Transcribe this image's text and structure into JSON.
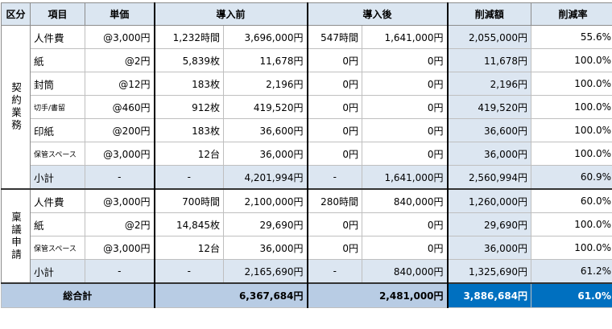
{
  "header": {
    "category": "区分",
    "item": "項目",
    "unit_price": "単価",
    "before": "導入前",
    "after": "導入後",
    "reduction": "削減額",
    "reduction_rate": "削減率"
  },
  "groups": [
    {
      "label": "契約業務",
      "rows": [
        {
          "item": "人件費",
          "unit": "@3,000円",
          "bq": "1,232時間",
          "bc": "3,696,000円",
          "aq": "547時間",
          "ac": "1,641,000円",
          "red": "2,055,000円",
          "rate": "55.6%"
        },
        {
          "item": "紙",
          "unit": "@2円",
          "bq": "5,839枚",
          "bc": "11,678円",
          "aq": "0円",
          "ac": "0円",
          "red": "11,678円",
          "rate": "100.0%"
        },
        {
          "item": "封筒",
          "unit": "@12円",
          "bq": "183枚",
          "bc": "2,196円",
          "aq": "0円",
          "ac": "0円",
          "red": "2,196円",
          "rate": "100.0%"
        },
        {
          "item": "切手/書留",
          "unit": "@460円",
          "bq": "912枚",
          "bc": "419,520円",
          "aq": "0円",
          "ac": "0円",
          "red": "419,520円",
          "rate": "100.0%"
        },
        {
          "item": "印紙",
          "unit": "@200円",
          "bq": "183枚",
          "bc": "36,600円",
          "aq": "0円",
          "ac": "0円",
          "red": "36,600円",
          "rate": "100.0%"
        },
        {
          "item": "保管スペース",
          "unit": "@3,000円",
          "bq": "12台",
          "bc": "36,000円",
          "aq": "0円",
          "ac": "0円",
          "red": "36,000円",
          "rate": "100.0%"
        }
      ],
      "subtotal": {
        "item": "小計",
        "unit": "-",
        "bq": "-",
        "bc": "4,201,994円",
        "aq": "-",
        "ac": "1,641,000円",
        "red": "2,560,994円",
        "rate": "60.9%"
      }
    },
    {
      "label": "稟議申請",
      "rows": [
        {
          "item": "人件費",
          "unit": "@3,000円",
          "bq": "700時間",
          "bc": "2,100,000円",
          "aq": "280時間",
          "ac": "840,000円",
          "red": "1,260,000円",
          "rate": "60.0%"
        },
        {
          "item": "紙",
          "unit": "@2円",
          "bq": "14,845枚",
          "bc": "29,690円",
          "aq": "0円",
          "ac": "0円",
          "red": "29,690円",
          "rate": "100.0%"
        },
        {
          "item": "保管スペース",
          "unit": "@3,000円",
          "bq": "12台",
          "bc": "36,000円",
          "aq": "0円",
          "ac": "0円",
          "red": "36,000円",
          "rate": "100.0%"
        }
      ],
      "subtotal": {
        "item": "小計",
        "unit": "-",
        "bq": "-",
        "bc": "2,165,690円",
        "aq": "-",
        "ac": "840,000円",
        "red": "1,325,690円",
        "rate": "61.2%"
      }
    }
  ],
  "total": {
    "label": "総合計",
    "bc": "6,367,684円",
    "ac": "2,481,000円",
    "red": "3,886,684円",
    "rate": "61.0%"
  },
  "colors": {
    "header_bg": "#dbe6f1",
    "subtotal_bg": "#dce6f1",
    "total_bg": "#b8cce4",
    "total_highlight": "#0070c0"
  }
}
